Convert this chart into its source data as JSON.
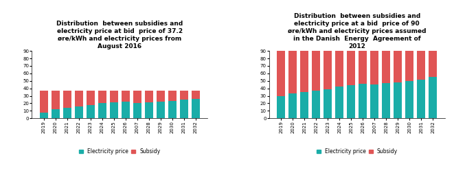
{
  "years": [
    "2019",
    "2020",
    "2021",
    "2022",
    "2023",
    "2024",
    "2025",
    "2026",
    "2007",
    "2028",
    "2029",
    "2030",
    "2031",
    "2032"
  ],
  "chart1": {
    "title": "Distribution  between subsidies and\nelectricity price at bid  price of 37.2\nøre/kWh and electricity prices from\nAugust 2016",
    "elec_price": [
      8,
      12,
      14,
      16,
      18,
      20,
      21,
      22,
      20,
      21,
      22,
      23,
      25,
      26
    ],
    "subsidy": [
      29,
      25,
      23,
      21,
      19,
      17,
      16,
      15,
      17,
      16,
      15,
      14,
      12,
      11
    ],
    "ylim": [
      0,
      90
    ],
    "yticks": [
      0,
      10,
      20,
      30,
      40,
      50,
      60,
      70,
      80,
      90
    ]
  },
  "chart2": {
    "title": "Distribution  between subsidies and\nelectricity price at a bid  price of 90\nøre/kWh and electricity prices assumed\nin the Danish  Energy  Agreement of\n2012",
    "elec_price": [
      30,
      33,
      35,
      37,
      39,
      42,
      44,
      46,
      45,
      47,
      48,
      50,
      52,
      55
    ],
    "subsidy": [
      60,
      57,
      55,
      53,
      51,
      48,
      46,
      44,
      45,
      43,
      42,
      40,
      38,
      35
    ],
    "ylim": [
      0,
      90
    ],
    "yticks": [
      0,
      10,
      20,
      30,
      40,
      50,
      60,
      70,
      80,
      90
    ]
  },
  "elec_color": "#1aada8",
  "subsidy_color": "#e05555",
  "legend_elec": "Electricity price",
  "legend_subsidy": "Subsidy",
  "bg_color": "#ffffff",
  "title_fontsize": 6.5,
  "bar_width": 0.7
}
